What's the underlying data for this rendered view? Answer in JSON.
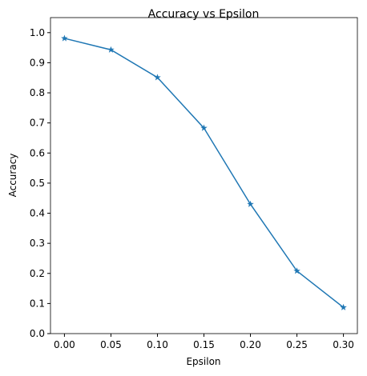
{
  "chart_data": {
    "type": "line",
    "title": "Accuracy vs Epsilon",
    "x_label": "Epsilon",
    "y_label": "Accuracy",
    "x": [
      0,
      0.05,
      0.1,
      0.15,
      0.2,
      0.25,
      0.3
    ],
    "series": [
      {
        "name": "Accuracy",
        "color": "#1f77b4",
        "marker": "star",
        "values": [
          0.981,
          0.943,
          0.851,
          0.683,
          0.43,
          0.208,
          0.087
        ]
      }
    ],
    "xlim": [
      -0.015,
      0.315
    ],
    "ylim": [
      0,
      1.05
    ],
    "xticks": [
      {
        "value": 0,
        "label": "0.00"
      },
      {
        "value": 0.05,
        "label": "0.05"
      },
      {
        "value": 0.1,
        "label": "0.10"
      },
      {
        "value": 0.15,
        "label": "0.15"
      },
      {
        "value": 0.2,
        "label": "0.20"
      },
      {
        "value": 0.25,
        "label": "0.25"
      },
      {
        "value": 0.3,
        "label": "0.30"
      }
    ],
    "yticks": [
      {
        "value": 0,
        "label": "0.0"
      },
      0.1,
      0.2,
      0.3,
      0.4,
      0.5,
      0.6,
      0.7,
      0.8,
      0.9,
      {
        "value": 1,
        "label": "1.0"
      }
    ],
    "grid": false
  }
}
